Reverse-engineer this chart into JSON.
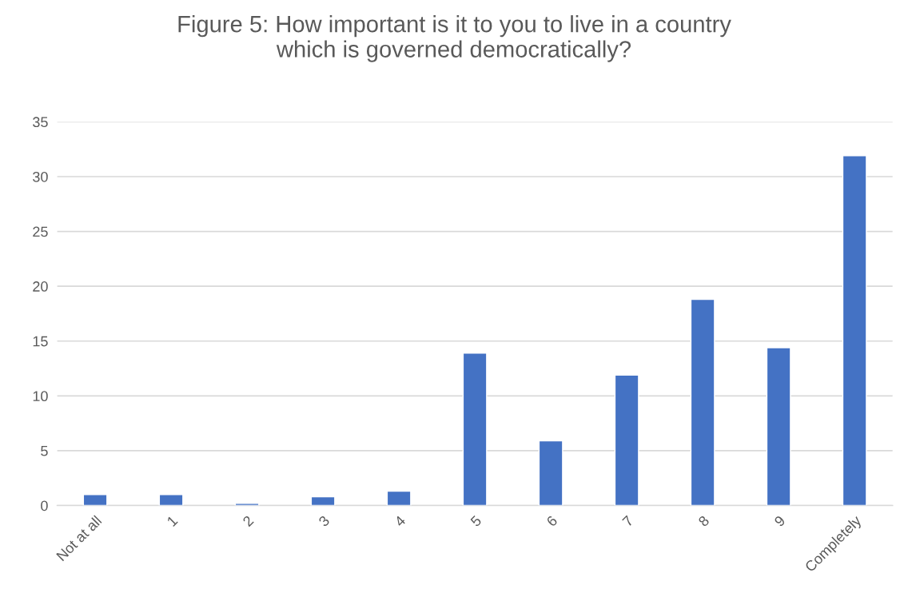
{
  "chart_data": {
    "type": "bar",
    "title": "Figure 5: How important is it to you to live in a country\nwhich is governed democratically?",
    "categories": [
      "Not at all",
      "1",
      "2",
      "3",
      "4",
      "5",
      "6",
      "7",
      "8",
      "9",
      "Completely"
    ],
    "values": [
      1.0,
      1.0,
      0.2,
      0.8,
      1.3,
      13.9,
      5.9,
      11.9,
      18.8,
      14.4,
      31.9
    ],
    "color": "#4472c4",
    "ylim": [
      0,
      35
    ],
    "yticks": [
      0,
      5,
      10,
      15,
      20,
      25,
      30,
      35
    ],
    "grid": "y"
  }
}
